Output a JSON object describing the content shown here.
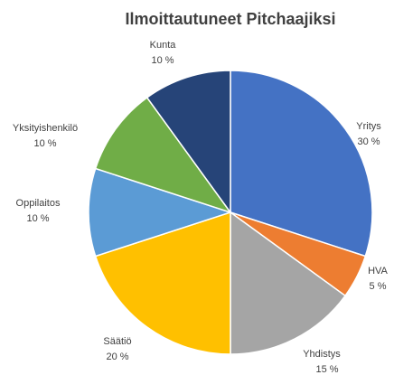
{
  "chart_data": {
    "type": "pie",
    "title": "Ilmoittautuneet Pitchaajiksi",
    "categories": [
      "Yritys",
      "HVA",
      "Yhdistys",
      "Säätiö",
      "Oppilaitos",
      "Yksityishenkilö",
      "Kunta"
    ],
    "values": [
      30,
      5,
      15,
      20,
      10,
      10,
      10
    ],
    "value_labels": [
      "30 %",
      "5 %",
      "15 %",
      "20 %",
      "10 %",
      "10 %",
      "10 %"
    ],
    "colors": [
      "#4472c4",
      "#ed7d31",
      "#a5a5a5",
      "#ffc000",
      "#5b9bd5",
      "#70ad47",
      "#264478"
    ]
  }
}
